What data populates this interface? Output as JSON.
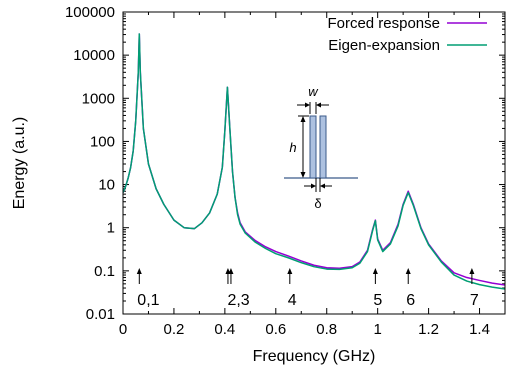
{
  "chart_data": {
    "type": "line",
    "xlabel": "Frequency (GHz)",
    "ylabel": "Energy (a.u.)",
    "x_scale": "linear",
    "y_scale": "log",
    "xlim": [
      0,
      1.5
    ],
    "ylim": [
      0.01,
      100000
    ],
    "x_ticks": [
      "0",
      "0.2",
      "0.4",
      "0.6",
      "0.8",
      "1",
      "1.2",
      "1.4"
    ],
    "x_tick_values": [
      0,
      0.2,
      0.4,
      0.6,
      0.8,
      1.0,
      1.2,
      1.4
    ],
    "y_ticks": [
      "0.01",
      "0.1",
      "1",
      "10",
      "100",
      "1000",
      "10000",
      "100000"
    ],
    "y_tick_values": [
      0.01,
      0.1,
      1,
      10,
      100,
      1000,
      10000,
      100000
    ],
    "legend_position": "top-right",
    "series": [
      {
        "name": "Forced response",
        "color": "#9400d3",
        "points": [
          [
            0.0,
            6.5
          ],
          [
            0.01,
            9
          ],
          [
            0.02,
            14
          ],
          [
            0.03,
            25
          ],
          [
            0.04,
            60
          ],
          [
            0.05,
            300
          ],
          [
            0.06,
            4000
          ],
          [
            0.064,
            31000
          ],
          [
            0.068,
            4000
          ],
          [
            0.08,
            200
          ],
          [
            0.1,
            30
          ],
          [
            0.13,
            8
          ],
          [
            0.16,
            3.5
          ],
          [
            0.2,
            1.5
          ],
          [
            0.24,
            1.0
          ],
          [
            0.28,
            0.95
          ],
          [
            0.31,
            1.3
          ],
          [
            0.34,
            2.2
          ],
          [
            0.37,
            6
          ],
          [
            0.39,
            25
          ],
          [
            0.4,
            180
          ],
          [
            0.41,
            1800
          ],
          [
            0.42,
            180
          ],
          [
            0.43,
            20
          ],
          [
            0.44,
            5
          ],
          [
            0.45,
            2.2
          ],
          [
            0.46,
            1.3
          ],
          [
            0.48,
            0.8
          ],
          [
            0.52,
            0.5
          ],
          [
            0.56,
            0.36
          ],
          [
            0.6,
            0.28
          ],
          [
            0.65,
            0.22
          ],
          [
            0.7,
            0.17
          ],
          [
            0.75,
            0.135
          ],
          [
            0.8,
            0.118
          ],
          [
            0.85,
            0.115
          ],
          [
            0.9,
            0.125
          ],
          [
            0.93,
            0.16
          ],
          [
            0.96,
            0.3
          ],
          [
            0.98,
            0.9
          ],
          [
            0.991,
            1.5
          ],
          [
            1.0,
            0.55
          ],
          [
            1.02,
            0.3
          ],
          [
            1.05,
            0.45
          ],
          [
            1.08,
            1.2
          ],
          [
            1.1,
            3.5
          ],
          [
            1.12,
            7
          ],
          [
            1.14,
            3.5
          ],
          [
            1.17,
            1.0
          ],
          [
            1.2,
            0.42
          ],
          [
            1.25,
            0.17
          ],
          [
            1.3,
            0.09
          ],
          [
            1.35,
            0.07
          ],
          [
            1.4,
            0.06
          ],
          [
            1.45,
            0.052
          ],
          [
            1.5,
            0.047
          ]
        ]
      },
      {
        "name": "Eigen-expansion",
        "color": "#009e73",
        "points": [
          [
            0.0,
            6.5
          ],
          [
            0.01,
            9
          ],
          [
            0.02,
            14
          ],
          [
            0.03,
            25
          ],
          [
            0.04,
            60
          ],
          [
            0.05,
            300
          ],
          [
            0.06,
            4000
          ],
          [
            0.064,
            31000
          ],
          [
            0.068,
            4000
          ],
          [
            0.08,
            200
          ],
          [
            0.1,
            30
          ],
          [
            0.13,
            8
          ],
          [
            0.16,
            3.5
          ],
          [
            0.2,
            1.5
          ],
          [
            0.24,
            1.0
          ],
          [
            0.28,
            0.95
          ],
          [
            0.31,
            1.3
          ],
          [
            0.34,
            2.2
          ],
          [
            0.37,
            6
          ],
          [
            0.39,
            25
          ],
          [
            0.4,
            180
          ],
          [
            0.41,
            1800
          ],
          [
            0.42,
            180
          ],
          [
            0.43,
            20
          ],
          [
            0.44,
            5
          ],
          [
            0.45,
            2.0
          ],
          [
            0.46,
            1.2
          ],
          [
            0.48,
            0.75
          ],
          [
            0.52,
            0.46
          ],
          [
            0.56,
            0.33
          ],
          [
            0.6,
            0.25
          ],
          [
            0.65,
            0.2
          ],
          [
            0.7,
            0.155
          ],
          [
            0.75,
            0.125
          ],
          [
            0.8,
            0.11
          ],
          [
            0.85,
            0.108
          ],
          [
            0.9,
            0.118
          ],
          [
            0.93,
            0.15
          ],
          [
            0.96,
            0.28
          ],
          [
            0.98,
            0.85
          ],
          [
            0.991,
            1.45
          ],
          [
            1.0,
            0.52
          ],
          [
            1.02,
            0.28
          ],
          [
            1.05,
            0.42
          ],
          [
            1.08,
            1.1
          ],
          [
            1.1,
            3.3
          ],
          [
            1.12,
            6.5
          ],
          [
            1.14,
            3.3
          ],
          [
            1.17,
            0.95
          ],
          [
            1.2,
            0.4
          ],
          [
            1.25,
            0.16
          ],
          [
            1.3,
            0.08
          ],
          [
            1.35,
            0.058
          ],
          [
            1.4,
            0.048
          ],
          [
            1.45,
            0.042
          ],
          [
            1.5,
            0.038
          ]
        ]
      }
    ],
    "annotations": [
      {
        "label": "0,1",
        "x": 0.064
      },
      {
        "label": "2,3",
        "x": 0.418
      },
      {
        "label": "4",
        "x": 0.655
      },
      {
        "label": "5",
        "x": 0.991
      },
      {
        "label": "6",
        "x": 1.12
      },
      {
        "label": "7",
        "x": 1.37
      }
    ],
    "inset": {
      "width_label": "w",
      "height_label": "h",
      "gap_label": "δ",
      "fill_color": "#adc1e0",
      "stroke_color": "#3b5a8a"
    }
  }
}
